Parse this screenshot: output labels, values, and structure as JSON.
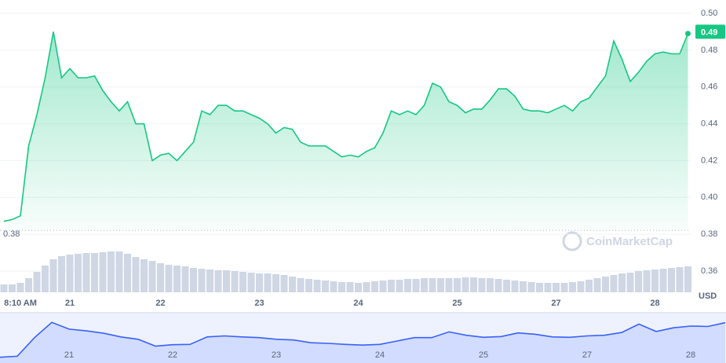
{
  "chart_data": [
    {
      "type": "line",
      "categories": [
        null,
        null,
        "8:10 AM",
        null,
        null,
        null,
        null,
        null,
        "21",
        null,
        null,
        null,
        null,
        null,
        null,
        null,
        null,
        null,
        null,
        "22",
        null,
        null,
        null,
        null,
        null,
        null,
        null,
        null,
        null,
        null,
        null,
        "23",
        null,
        null,
        null,
        null,
        null,
        null,
        null,
        null,
        null,
        null,
        null,
        "24",
        null,
        null,
        null,
        null,
        null,
        null,
        null,
        null,
        null,
        null,
        null,
        "25",
        null,
        null,
        null,
        null,
        null,
        null,
        null,
        null,
        null,
        null,
        null,
        "27",
        null,
        null,
        null,
        null,
        null,
        null,
        null,
        null,
        null,
        null,
        null,
        "28",
        null,
        null,
        null,
        null
      ],
      "series": [
        {
          "color": "#16c784",
          "values": [
            0.387,
            0.388,
            0.39,
            0.428,
            0.445,
            0.465,
            0.49,
            0.465,
            0.47,
            0.465,
            0.465,
            0.466,
            0.458,
            0.452,
            0.447,
            0.452,
            0.44,
            0.44,
            0.42,
            0.423,
            0.424,
            0.42,
            0.425,
            0.43,
            0.447,
            0.445,
            0.45,
            0.45,
            0.447,
            0.447,
            0.445,
            0.443,
            0.44,
            0.435,
            0.438,
            0.437,
            0.43,
            0.428,
            0.428,
            0.428,
            0.425,
            0.422,
            0.423,
            0.422,
            0.425,
            0.427,
            0.435,
            0.447,
            0.445,
            0.447,
            0.445,
            0.45,
            0.462,
            0.46,
            0.452,
            0.45,
            0.446,
            0.448,
            0.448,
            0.453,
            0.459,
            0.459,
            0.455,
            0.448,
            0.447,
            0.447,
            0.446,
            0.448,
            0.45,
            0.447,
            0.452,
            0.454,
            0.46,
            0.466,
            0.485,
            0.475,
            0.463,
            0.468,
            0.474,
            0.478,
            0.479,
            0.478,
            0.478,
            0.489
          ]
        }
      ],
      "volume": {
        "color": "#cfd6e4",
        "values": [
          10,
          10,
          12,
          18,
          26,
          34,
          42,
          46,
          48,
          49,
          50,
          50,
          51,
          52,
          52,
          49,
          45,
          42,
          40,
          37,
          35,
          34,
          33,
          31,
          30,
          29,
          28,
          28,
          27,
          26,
          25,
          24,
          24,
          23,
          22,
          20,
          18,
          17,
          16,
          15,
          14,
          13,
          13,
          12,
          13,
          14,
          15,
          16,
          16,
          17,
          17,
          18,
          18,
          18,
          18,
          18,
          19,
          19,
          18,
          18,
          17,
          16,
          15,
          14,
          13,
          12,
          12,
          12,
          12,
          13,
          14,
          16,
          18,
          20,
          22,
          24,
          25,
          27,
          28,
          29,
          30,
          31,
          32,
          33
        ]
      },
      "ylim": [
        0.36,
        0.5
      ],
      "yticks": [
        {
          "value": 0.5,
          "label": "0.50"
        },
        0.48,
        0.46,
        0.44,
        0.42,
        {
          "value": 0.4,
          "label": "0.40"
        },
        0.38,
        0.36
      ],
      "grid": true,
      "reference_line": 0.38,
      "last_price": 0.49,
      "y_unit": "USD",
      "watermark": "CoinMarketCap"
    },
    {
      "type": "line",
      "categories": [
        null,
        null,
        null,
        null,
        "21",
        null,
        null,
        null,
        null,
        null,
        "22",
        null,
        null,
        null,
        null,
        null,
        "23",
        null,
        null,
        null,
        null,
        null,
        "24",
        null,
        null,
        null,
        null,
        null,
        "25",
        null,
        null,
        null,
        null,
        null,
        "27",
        null,
        null,
        null,
        null,
        null,
        "28",
        null,
        null
      ],
      "values": [
        0.387,
        0.39,
        0.445,
        0.49,
        0.47,
        0.465,
        0.458,
        0.447,
        0.44,
        0.42,
        0.424,
        0.425,
        0.447,
        0.45,
        0.447,
        0.445,
        0.44,
        0.438,
        0.43,
        0.428,
        0.425,
        0.423,
        0.425,
        0.435,
        0.445,
        0.445,
        0.462,
        0.452,
        0.446,
        0.448,
        0.459,
        0.455,
        0.447,
        0.446,
        0.45,
        0.452,
        0.46,
        0.485,
        0.463,
        0.474,
        0.479,
        0.478,
        0.489
      ],
      "color": "#3861fb",
      "ylim": [
        0.37,
        0.5
      ]
    }
  ]
}
